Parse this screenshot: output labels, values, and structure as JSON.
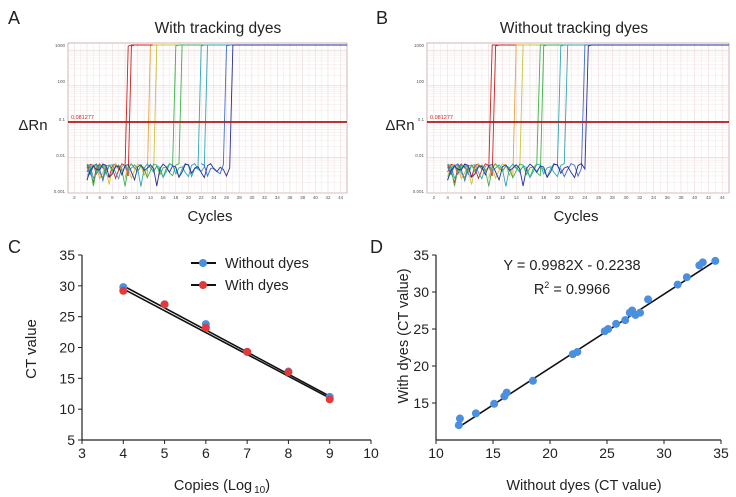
{
  "panels": {
    "A": {
      "letter": "A",
      "title": "With tracking dyes",
      "ylabel": "ΔRn",
      "xlabel": "Cycles",
      "threshold_label": "0.081277",
      "yticks": [
        "1000",
        "100",
        "0.1",
        "0.01",
        "0.001"
      ]
    },
    "B": {
      "letter": "B",
      "title": "Without tracking dyes",
      "ylabel": "ΔRn",
      "xlabel": "Cycles",
      "threshold_label": "0.081277",
      "yticks": [
        "1000",
        "100",
        "0.1",
        "0.01",
        "0.001"
      ]
    },
    "C": {
      "letter": "C"
    },
    "D": {
      "letter": "D"
    }
  },
  "amp_xticks": [
    "2",
    "4",
    "6",
    "8",
    "10",
    "12",
    "14",
    "16",
    "18",
    "20",
    "22",
    "24",
    "26",
    "28",
    "30",
    "32",
    "34",
    "36",
    "38",
    "40",
    "42",
    "44"
  ],
  "colors": {
    "red": "#cc2222",
    "orange": "#e8a23a",
    "yellow": "#c8c43a",
    "green": "#3fb24a",
    "teal": "#2fa7b4",
    "blue": "#3a6fd0",
    "navy": "#2a2f9a",
    "blue_dot": "#4a8fe0",
    "red_dot": "#e23a3a"
  },
  "chart_data": [
    {
      "type": "line",
      "panel": "A",
      "title": "With tracking dyes",
      "xlabel": "Cycles",
      "ylabel": "ΔRn",
      "y_scale": "log",
      "xlim": [
        1,
        45
      ],
      "threshold": 0.081277,
      "series": [
        {
          "color": "red",
          "ct": 11.5
        },
        {
          "color": "red",
          "ct": 12.0
        },
        {
          "color": "orange",
          "ct": 15.0
        },
        {
          "color": "yellow",
          "ct": 15.8
        },
        {
          "color": "green",
          "ct": 19.0
        },
        {
          "color": "green",
          "ct": 19.6
        },
        {
          "color": "teal",
          "ct": 23.0
        },
        {
          "color": "teal",
          "ct": 23.6
        },
        {
          "color": "blue",
          "ct": 27.0
        },
        {
          "color": "navy",
          "ct": 27.8
        }
      ]
    },
    {
      "type": "line",
      "panel": "B",
      "title": "Without tracking dyes",
      "xlabel": "Cycles",
      "ylabel": "ΔRn",
      "y_scale": "log",
      "xlim": [
        1,
        45
      ],
      "threshold": 0.081277,
      "series": [
        {
          "color": "red",
          "ct": 11.3
        },
        {
          "color": "red",
          "ct": 12.0
        },
        {
          "color": "orange",
          "ct": 14.8
        },
        {
          "color": "yellow",
          "ct": 15.6
        },
        {
          "color": "green",
          "ct": 18.3
        },
        {
          "color": "green",
          "ct": 19.0
        },
        {
          "color": "teal",
          "ct": 21.5
        },
        {
          "color": "teal",
          "ct": 22.3
        },
        {
          "color": "blue",
          "ct": 24.8
        },
        {
          "color": "navy",
          "ct": 25.5
        }
      ]
    },
    {
      "type": "scatter",
      "panel": "C",
      "xlabel": "Copies (Log",
      "xlabel_sub": "10",
      "xlabel_close": ")",
      "ylabel": "CT value",
      "xlim": [
        3,
        10
      ],
      "ylim": [
        5,
        35
      ],
      "xticks": [
        3,
        4,
        5,
        6,
        7,
        8,
        9,
        10
      ],
      "yticks": [
        5,
        10,
        15,
        20,
        25,
        30,
        35
      ],
      "legend": "top-right",
      "series": [
        {
          "name": "Without dyes",
          "color": "blue_dot",
          "x": [
            4,
            5,
            6,
            7,
            8,
            9
          ],
          "y": [
            29.8,
            27.0,
            23.8,
            19.3,
            16.1,
            12.0
          ]
        },
        {
          "name": "With dyes",
          "color": "red_dot",
          "x": [
            4,
            5,
            6,
            7,
            8,
            9
          ],
          "y": [
            29.2,
            27.0,
            23.2,
            19.3,
            16.0,
            11.6
          ]
        }
      ],
      "fit_lines": [
        {
          "x": [
            4,
            9
          ],
          "y": [
            30.0,
            12.1
          ]
        },
        {
          "x": [
            4,
            9
          ],
          "y": [
            29.5,
            11.8
          ]
        }
      ]
    },
    {
      "type": "scatter",
      "panel": "D",
      "xlabel": "Without dyes (CT value)",
      "ylabel": "With dyes  (CT value)",
      "xlim": [
        10,
        35
      ],
      "ylim": [
        10,
        35
      ],
      "xticks": [
        10,
        15,
        20,
        25,
        30,
        35
      ],
      "yticks": [
        15,
        20,
        25,
        30,
        35
      ],
      "equation": "Y = 0.9982X - 0.2238",
      "r2_label": "R",
      "r2_sup": "2",
      "r2_value": " = 0.9966",
      "series": [
        {
          "color": "blue_dot",
          "x": [
            12.0,
            12.1,
            13.5,
            15.1,
            16.0,
            16.2,
            18.5,
            22.0,
            22.4,
            24.8,
            25.1,
            25.8,
            26.6,
            27.0,
            27.2,
            27.5,
            27.9,
            28.6,
            31.2,
            32.0,
            33.1,
            33.4,
            34.5
          ],
          "y": [
            12.0,
            12.9,
            13.6,
            14.9,
            15.9,
            16.4,
            18.0,
            21.6,
            21.9,
            24.7,
            25.0,
            25.7,
            26.2,
            27.2,
            27.5,
            26.9,
            27.2,
            29.0,
            31.0,
            32.0,
            33.6,
            34.0,
            34.2
          ]
        }
      ],
      "fit_lines": [
        {
          "x": [
            12,
            34.5
          ],
          "y": [
            11.75,
            34.2
          ]
        }
      ]
    }
  ]
}
